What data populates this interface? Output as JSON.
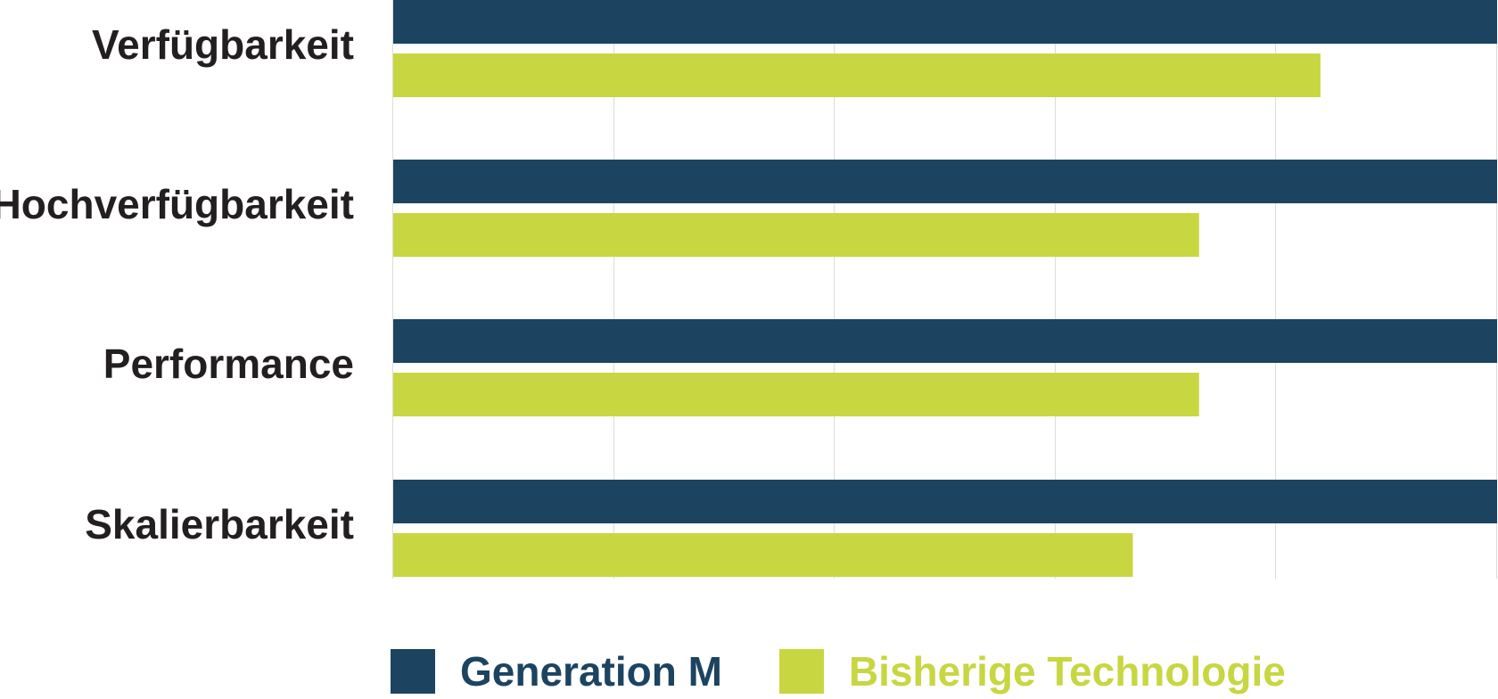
{
  "chart_data": {
    "type": "bar",
    "orientation": "horizontal",
    "categories": [
      "Verfügbarkeit",
      "Hochverfügbarkeit",
      "Performance",
      "Skalierbarkeit"
    ],
    "series": [
      {
        "name": "Generation M",
        "color": "#1c4461",
        "values": [
          100,
          100,
          100,
          100
        ]
      },
      {
        "name": "Bisherige Technologie",
        "color": "#c8d641",
        "values": [
          84,
          73,
          73,
          67
        ]
      }
    ],
    "xlim": [
      0,
      100
    ],
    "grid": true,
    "tick_labels_shown": false,
    "legend_position": "bottom"
  }
}
